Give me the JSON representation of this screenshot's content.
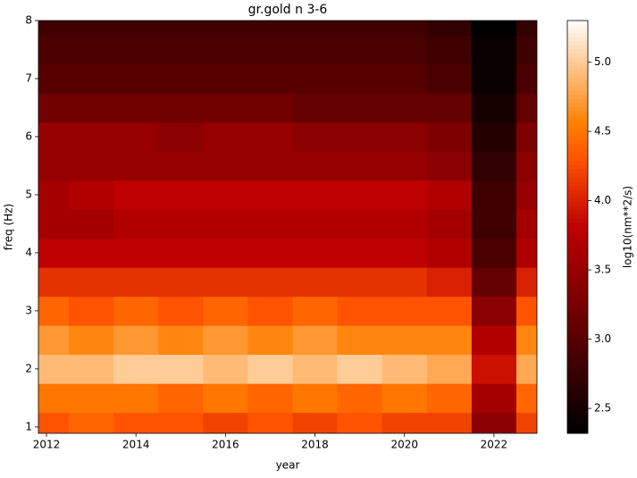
{
  "chart_data": {
    "type": "heatmap",
    "title": "gr.gold n 3-6",
    "xlabel": "year",
    "ylabel": "freq (Hz)",
    "colorbar_label": "log10(nm**2/s)",
    "colormap": "gist_heat",
    "x": [
      2012,
      2013,
      2014,
      2015,
      2016,
      2017,
      2018,
      2019,
      2020,
      2021,
      2022,
      2023
    ],
    "y": [
      1.0,
      1.5,
      2.0,
      2.5,
      3.0,
      3.5,
      4.0,
      4.5,
      5.0,
      5.5,
      6.0,
      6.5,
      7.0,
      7.5,
      8.0
    ],
    "z": [
      [
        4.3,
        4.4,
        4.3,
        4.3,
        4.2,
        4.3,
        4.2,
        4.3,
        4.2,
        4.2,
        3.4,
        4.2
      ],
      [
        4.5,
        4.5,
        4.5,
        4.4,
        4.5,
        4.4,
        4.5,
        4.4,
        4.5,
        4.4,
        3.6,
        4.4
      ],
      [
        4.9,
        4.9,
        5.0,
        5.0,
        4.9,
        5.0,
        4.9,
        5.0,
        4.9,
        4.8,
        3.9,
        4.8
      ],
      [
        4.7,
        4.6,
        4.7,
        4.6,
        4.7,
        4.6,
        4.7,
        4.6,
        4.6,
        4.6,
        3.7,
        4.6
      ],
      [
        4.4,
        4.3,
        4.4,
        4.3,
        4.4,
        4.3,
        4.4,
        4.3,
        4.3,
        4.3,
        3.4,
        4.3
      ],
      [
        4.1,
        4.1,
        4.1,
        4.1,
        4.1,
        4.1,
        4.1,
        4.1,
        4.1,
        4.0,
        3.1,
        4.0
      ],
      [
        3.8,
        3.8,
        3.8,
        3.8,
        3.8,
        3.8,
        3.8,
        3.8,
        3.8,
        3.7,
        2.9,
        3.7
      ],
      [
        3.6,
        3.6,
        3.7,
        3.7,
        3.7,
        3.7,
        3.7,
        3.7,
        3.7,
        3.6,
        2.8,
        3.6
      ],
      [
        3.6,
        3.7,
        3.8,
        3.8,
        3.8,
        3.8,
        3.8,
        3.8,
        3.8,
        3.7,
        2.8,
        3.5
      ],
      [
        3.5,
        3.5,
        3.5,
        3.5,
        3.5,
        3.5,
        3.5,
        3.5,
        3.5,
        3.4,
        2.7,
        3.4
      ],
      [
        3.5,
        3.5,
        3.5,
        3.4,
        3.5,
        3.5,
        3.4,
        3.4,
        3.4,
        3.3,
        2.6,
        3.3
      ],
      [
        3.2,
        3.2,
        3.2,
        3.2,
        3.2,
        3.2,
        3.1,
        3.1,
        3.1,
        3.1,
        2.5,
        3.1
      ],
      [
        3.0,
        3.0,
        3.0,
        3.0,
        3.0,
        3.0,
        3.0,
        3.0,
        3.0,
        2.9,
        2.4,
        2.9
      ],
      [
        2.9,
        2.9,
        2.9,
        2.9,
        2.9,
        2.9,
        2.9,
        2.9,
        2.9,
        2.8,
        2.4,
        2.8
      ],
      [
        2.8,
        2.8,
        2.8,
        2.8,
        2.8,
        2.8,
        2.8,
        2.8,
        2.8,
        2.7,
        2.3,
        2.7
      ]
    ],
    "xlim": [
      2011.82,
      2022.96
    ],
    "xticks": [
      2012,
      2014,
      2016,
      2018,
      2020,
      2022
    ],
    "ylim": [
      0.89,
      8
    ],
    "yticks": [
      1,
      2,
      3,
      4,
      5,
      6,
      7,
      8
    ],
    "clim": [
      2.32,
      5.3
    ],
    "cticks": [
      2.5,
      {
        "value": 3,
        "label": "3.0"
      },
      3.5,
      {
        "value": 4,
        "label": "4.0"
      },
      4.5,
      {
        "value": 5,
        "label": "5.0"
      }
    ]
  }
}
